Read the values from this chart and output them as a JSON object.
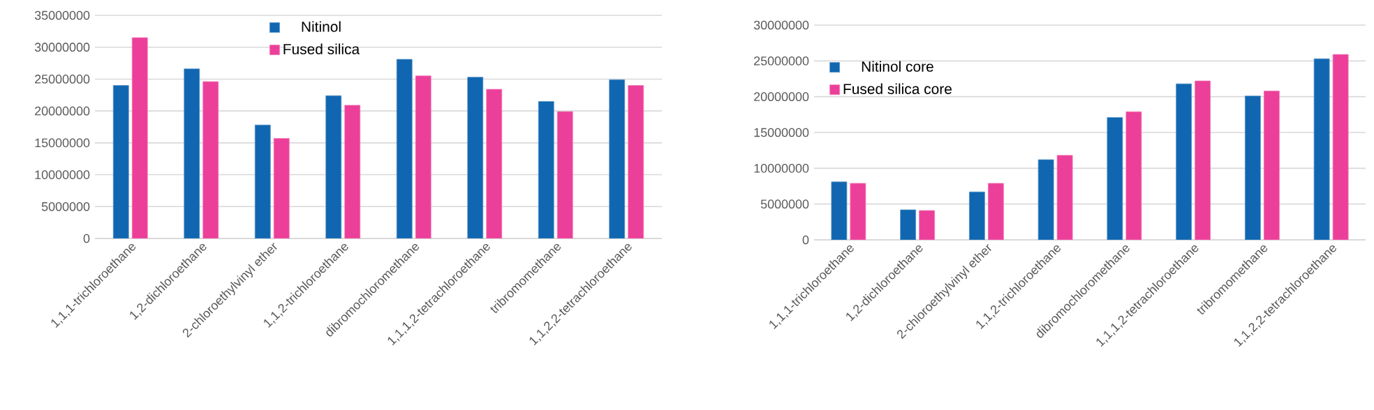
{
  "chart_data": [
    {
      "type": "bar",
      "categories": [
        "1,1,1-trichloroethane",
        "1,2-dichloroethane",
        "2-chloroethylvinyl ether",
        "1,1,2-trichloroethane",
        "dibromochloromethane",
        "1,1,1,2-tetrachloroethane",
        "tribromomethane",
        "1,1,2,2-tetrachloroethane"
      ],
      "series": [
        {
          "name": "Nitinol",
          "color": "#1066b0",
          "values": [
            24000000,
            26600000,
            17800000,
            22400000,
            28100000,
            25300000,
            21500000,
            24900000
          ]
        },
        {
          "name": "Fused silica",
          "color": "#ec3f99",
          "values": [
            31500000,
            24600000,
            15700000,
            20900000,
            25500000,
            23400000,
            19900000,
            24000000
          ]
        }
      ],
      "ylim": [
        0,
        35000000
      ],
      "yticks": [
        0,
        5000000,
        10000000,
        15000000,
        20000000,
        25000000,
        30000000,
        35000000
      ],
      "grid": "y",
      "legend": "top"
    },
    {
      "type": "bar",
      "categories": [
        "1,1,1-trichloroethane",
        "1,2-dichloroethane",
        "2-chloroethylvinyl ether",
        "1,1,2-trichloroethane",
        "dibromochloromethane",
        "1,1,1,2-tetrachloroethane",
        "tribromomethane",
        "1,1,2,2-tetrachloroethane"
      ],
      "series": [
        {
          "name": "Nitinol core",
          "color": "#1066b0",
          "values": [
            8100000,
            4200000,
            6700000,
            11200000,
            17100000,
            21800000,
            20100000,
            25300000
          ]
        },
        {
          "name": "Fused silica core",
          "color": "#ec3f99",
          "values": [
            7900000,
            4100000,
            7900000,
            11800000,
            17900000,
            22200000,
            20800000,
            25900000
          ]
        }
      ],
      "ylim": [
        0,
        30000000
      ],
      "yticks": [
        0,
        5000000,
        10000000,
        15000000,
        20000000,
        25000000,
        30000000
      ],
      "grid": "y",
      "legend": "top left"
    }
  ]
}
